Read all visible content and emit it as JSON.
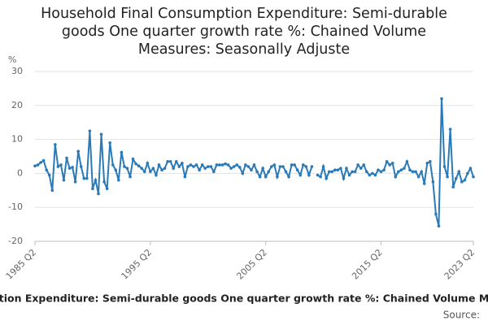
{
  "chart_data": {
    "type": "line",
    "title": "Household Final Consumption Expenditure: Semi-durable goods One quarter growth rate %: Chained Volume Measures: Seasonally Adjuste",
    "y_label": "%",
    "footer": "tion Expenditure: Semi-durable goods One quarter growth rate %: Chained Volume M",
    "source": "Source:",
    "categories": [
      "1985 Q2",
      null,
      null,
      null,
      null,
      null,
      null,
      null,
      null,
      null,
      null,
      null,
      null,
      null,
      null,
      null,
      null,
      null,
      null,
      null,
      null,
      null,
      null,
      null,
      null,
      null,
      null,
      null,
      null,
      null,
      null,
      null,
      null,
      null,
      null,
      null,
      null,
      null,
      null,
      null,
      "1995 Q2",
      null,
      null,
      null,
      null,
      null,
      null,
      null,
      null,
      null,
      null,
      null,
      null,
      null,
      null,
      null,
      null,
      null,
      null,
      null,
      null,
      null,
      null,
      null,
      null,
      null,
      null,
      null,
      null,
      null,
      null,
      null,
      null,
      null,
      null,
      null,
      null,
      null,
      null,
      null,
      "2005 Q2",
      null,
      null,
      null,
      null,
      null,
      null,
      null,
      null,
      null,
      null,
      null,
      null,
      null,
      null,
      null,
      null,
      null,
      null,
      null,
      null,
      null,
      null,
      null,
      null,
      null,
      null,
      null,
      null,
      null,
      null,
      null,
      null,
      null,
      null,
      null,
      null,
      null,
      null,
      null,
      "2015 Q2",
      null,
      null,
      null,
      null,
      null,
      null,
      null,
      null,
      null,
      null,
      null,
      null,
      null,
      null,
      null,
      null,
      null,
      null,
      null,
      null,
      null,
      null,
      null,
      null,
      null,
      null,
      null,
      null,
      null,
      null,
      null,
      "2023 Q2"
    ],
    "series": [
      {
        "color": "#2a7ab8",
        "values": [
          2.2,
          2.5,
          3.2,
          3.8,
          1,
          -0.5,
          -5,
          8.5,
          2,
          2.5,
          -2,
          4.5,
          1.5,
          1.8,
          -2.5,
          6.5,
          2,
          -1.5,
          -1.5,
          12.5,
          -4.5,
          -2,
          -6,
          11.5,
          -2.5,
          -4.5,
          9,
          2.5,
          1,
          -2,
          6.2,
          2,
          1.5,
          -1,
          4.2,
          2.8,
          2.2,
          1.5,
          0.5,
          3,
          0.5,
          1.5,
          -0.5,
          2.5,
          1,
          1.5,
          3.5,
          3.5,
          1.5,
          3.5,
          2,
          3,
          -1,
          2,
          2.5,
          2,
          2.5,
          1,
          2.5,
          1.5,
          2,
          2,
          0.5,
          2.5,
          2.5,
          2.5,
          2.8,
          2.5,
          1.5,
          2,
          2.5,
          1.8,
          0,
          2.5,
          2,
          1,
          2.5,
          0.5,
          -1,
          1.5,
          -1,
          0.5,
          2,
          2.5,
          -1,
          2,
          2,
          0.5,
          -1,
          2.5,
          2.5,
          1,
          -0.5,
          2.5,
          2,
          -0.5,
          2,
          null,
          -0.5,
          -1,
          2,
          -1.5,
          0.5,
          0.5,
          1,
          1,
          1.5,
          -1.5,
          1.5,
          -0.5,
          0.5,
          0.5,
          2.5,
          1.5,
          2.5,
          0.5,
          -0.5,
          0,
          -0.5,
          1,
          0.5,
          1,
          3.5,
          2.5,
          3,
          -1,
          0.5,
          1,
          1.5,
          3.5,
          1,
          0.5,
          0.5,
          -1,
          0.5,
          -3,
          3,
          3.5,
          -2.5,
          -12,
          -15.5,
          22,
          2,
          -1,
          13,
          -4,
          -1.5,
          0.5,
          -2.5,
          -2,
          0,
          1.5,
          -1
        ]
      }
    ],
    "ylim": [
      -20,
      30
    ],
    "yticks": [
      -20,
      -10,
      0,
      10,
      20,
      30
    ],
    "grid": true
  }
}
